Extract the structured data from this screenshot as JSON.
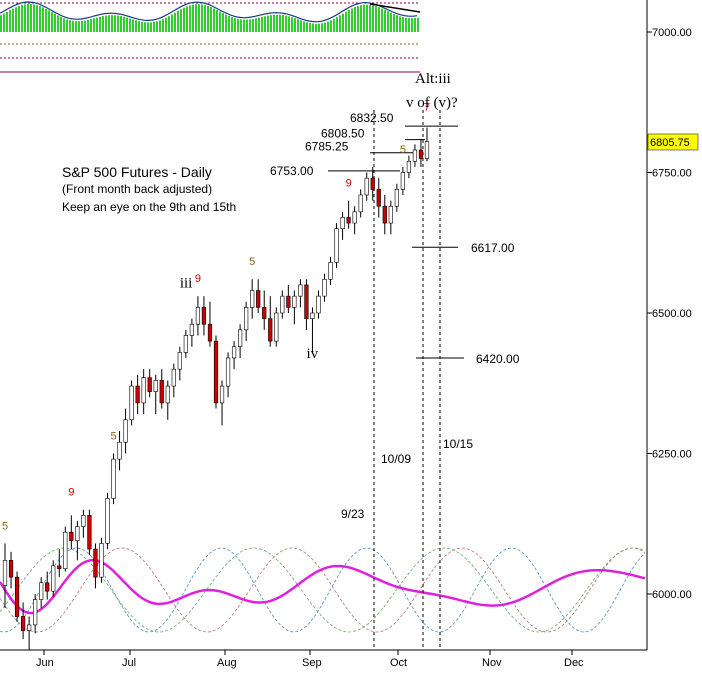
{
  "chart_data": {
    "type": "candlestick",
    "title": "S&P 500 Futures - Daily",
    "subtitle": "(Front month back adjusted)",
    "note": "Keep an eye on the 9th and 15th",
    "y_ticks": [
      "7000.00",
      "6750.00",
      "6500.00",
      "6250.00",
      "6000.00"
    ],
    "ylim": [
      5900,
      7050
    ],
    "x_months": [
      "Jun",
      "Jul",
      "Aug",
      "Sep",
      "Oct",
      "Nov",
      "Dec"
    ],
    "last_price": "6805.75",
    "candles": [
      {
        "t": "Jun 1",
        "o": 6015,
        "h": 6090,
        "l": 5975,
        "c": 6060
      },
      {
        "t": "Jun 2",
        "o": 6060,
        "h": 6075,
        "l": 6010,
        "c": 6030
      },
      {
        "t": "Jun 3",
        "o": 6030,
        "h": 6040,
        "l": 5950,
        "c": 5960
      },
      {
        "t": "Jun 4",
        "o": 5960,
        "h": 5985,
        "l": 5920,
        "c": 5935
      },
      {
        "t": "Jun 5",
        "o": 5935,
        "h": 5960,
        "l": 5900,
        "c": 5945
      },
      {
        "t": "Jun 6",
        "o": 5945,
        "h": 6000,
        "l": 5930,
        "c": 5990
      },
      {
        "t": "Jun 7",
        "o": 5990,
        "h": 6030,
        "l": 5975,
        "c": 6020
      },
      {
        "t": "Jun 8",
        "o": 6020,
        "h": 6040,
        "l": 5990,
        "c": 6005
      },
      {
        "t": "Jun 9",
        "o": 6005,
        "h": 6060,
        "l": 5995,
        "c": 6050
      },
      {
        "t": "Jun 10",
        "o": 6050,
        "h": 6080,
        "l": 6030,
        "c": 6045
      },
      {
        "t": "Jun 11",
        "o": 6045,
        "h": 6120,
        "l": 6040,
        "c": 6110
      },
      {
        "t": "Jun 12",
        "o": 6110,
        "h": 6140,
        "l": 6080,
        "c": 6095
      },
      {
        "t": "Jun 13",
        "o": 6095,
        "h": 6130,
        "l": 6060,
        "c": 6120
      },
      {
        "t": "Jun 14",
        "o": 6120,
        "h": 6150,
        "l": 6100,
        "c": 6140
      },
      {
        "t": "Jun 15",
        "o": 6140,
        "h": 6150,
        "l": 6070,
        "c": 6080
      },
      {
        "t": "Jun 16",
        "o": 6080,
        "h": 6090,
        "l": 6010,
        "c": 6030
      },
      {
        "t": "Jun 17",
        "o": 6030,
        "h": 6100,
        "l": 6020,
        "c": 6090
      },
      {
        "t": "Jun 18",
        "o": 6090,
        "h": 6180,
        "l": 6080,
        "c": 6170
      },
      {
        "t": "Jun 19",
        "o": 6170,
        "h": 6250,
        "l": 6160,
        "c": 6240
      },
      {
        "t": "Jun 20",
        "o": 6240,
        "h": 6290,
        "l": 6220,
        "c": 6270
      },
      {
        "t": "Jun 21",
        "o": 6270,
        "h": 6330,
        "l": 6250,
        "c": 6310
      },
      {
        "t": "Jun 22",
        "o": 6310,
        "h": 6380,
        "l": 6300,
        "c": 6370
      },
      {
        "t": "Jun 23",
        "o": 6370,
        "h": 6390,
        "l": 6320,
        "c": 6340
      },
      {
        "t": "Jul 1",
        "o": 6340,
        "h": 6400,
        "l": 6320,
        "c": 6385
      },
      {
        "t": "Jul 2",
        "o": 6385,
        "h": 6400,
        "l": 6350,
        "c": 6360
      },
      {
        "t": "Jul 3",
        "o": 6360,
        "h": 6390,
        "l": 6320,
        "c": 6380
      },
      {
        "t": "Jul 4",
        "o": 6380,
        "h": 6400,
        "l": 6330,
        "c": 6340
      },
      {
        "t": "Jul 5",
        "o": 6340,
        "h": 6380,
        "l": 6310,
        "c": 6370
      },
      {
        "t": "Jul 6",
        "o": 6370,
        "h": 6410,
        "l": 6350,
        "c": 6400
      },
      {
        "t": "Jul 7",
        "o": 6400,
        "h": 6440,
        "l": 6380,
        "c": 6430
      },
      {
        "t": "Jul 8",
        "o": 6430,
        "h": 6470,
        "l": 6420,
        "c": 6460
      },
      {
        "t": "Jul 9",
        "o": 6460,
        "h": 6490,
        "l": 6440,
        "c": 6480
      },
      {
        "t": "Jul 10",
        "o": 6480,
        "h": 6530,
        "l": 6460,
        "c": 6510
      },
      {
        "t": "Jul 11",
        "o": 6510,
        "h": 6530,
        "l": 6460,
        "c": 6480
      },
      {
        "t": "Jul 12",
        "o": 6480,
        "h": 6520,
        "l": 6440,
        "c": 6450
      },
      {
        "t": "Jul 13",
        "o": 6450,
        "h": 6460,
        "l": 6330,
        "c": 6340
      },
      {
        "t": "Jul 14",
        "o": 6340,
        "h": 6380,
        "l": 6300,
        "c": 6370
      },
      {
        "t": "Jul 15",
        "o": 6370,
        "h": 6430,
        "l": 6350,
        "c": 6420
      },
      {
        "t": "Jul 16",
        "o": 6420,
        "h": 6450,
        "l": 6400,
        "c": 6440
      },
      {
        "t": "Aug 1",
        "o": 6440,
        "h": 6480,
        "l": 6420,
        "c": 6470
      },
      {
        "t": "Aug 2",
        "o": 6470,
        "h": 6520,
        "l": 6450,
        "c": 6510
      },
      {
        "t": "Aug 3",
        "o": 6510,
        "h": 6560,
        "l": 6490,
        "c": 6540
      },
      {
        "t": "Aug 4",
        "o": 6540,
        "h": 6560,
        "l": 6500,
        "c": 6510
      },
      {
        "t": "Aug 5",
        "o": 6510,
        "h": 6540,
        "l": 6470,
        "c": 6490
      },
      {
        "t": "Aug 6",
        "o": 6490,
        "h": 6530,
        "l": 6440,
        "c": 6450
      },
      {
        "t": "Aug 7",
        "o": 6450,
        "h": 6510,
        "l": 6440,
        "c": 6500
      },
      {
        "t": "Aug 8",
        "o": 6500,
        "h": 6540,
        "l": 6490,
        "c": 6530
      },
      {
        "t": "Aug 9",
        "o": 6530,
        "h": 6550,
        "l": 6500,
        "c": 6510
      },
      {
        "t": "Aug 10",
        "o": 6510,
        "h": 6540,
        "l": 6480,
        "c": 6530
      },
      {
        "t": "Aug 11",
        "o": 6530,
        "h": 6560,
        "l": 6510,
        "c": 6550
      },
      {
        "t": "Aug 12",
        "o": 6550,
        "h": 6560,
        "l": 6470,
        "c": 6490
      },
      {
        "t": "Aug 13",
        "o": 6490,
        "h": 6510,
        "l": 6430,
        "c": 6500
      },
      {
        "t": "Sep 1",
        "o": 6500,
        "h": 6540,
        "l": 6490,
        "c": 6530
      },
      {
        "t": "Sep 2",
        "o": 6530,
        "h": 6570,
        "l": 6520,
        "c": 6560
      },
      {
        "t": "Sep 3",
        "o": 6560,
        "h": 6600,
        "l": 6550,
        "c": 6590
      },
      {
        "t": "Sep 4",
        "o": 6590,
        "h": 6660,
        "l": 6580,
        "c": 6650
      },
      {
        "t": "Sep 5",
        "o": 6650,
        "h": 6680,
        "l": 6630,
        "c": 6670
      },
      {
        "t": "Sep 6",
        "o": 6670,
        "h": 6700,
        "l": 6650,
        "c": 6660
      },
      {
        "t": "Sep 7",
        "o": 6660,
        "h": 6690,
        "l": 6640,
        "c": 6680
      },
      {
        "t": "Sep 8",
        "o": 6680,
        "h": 6720,
        "l": 6670,
        "c": 6710
      },
      {
        "t": "Sep 9",
        "o": 6710,
        "h": 6750,
        "l": 6700,
        "c": 6740
      },
      {
        "t": "Sep 10",
        "o": 6740,
        "h": 6760,
        "l": 6700,
        "c": 6720
      },
      {
        "t": "Sep 11",
        "o": 6720,
        "h": 6740,
        "l": 6670,
        "c": 6690
      },
      {
        "t": "Sep 12",
        "o": 6690,
        "h": 6710,
        "l": 6640,
        "c": 6660
      },
      {
        "t": "Sep 13",
        "o": 6660,
        "h": 6700,
        "l": 6640,
        "c": 6690
      },
      {
        "t": "Sep 14",
        "o": 6690,
        "h": 6730,
        "l": 6680,
        "c": 6720
      },
      {
        "t": "Sep 15",
        "o": 6720,
        "h": 6760,
        "l": 6710,
        "c": 6750
      },
      {
        "t": "Oct 1",
        "o": 6750,
        "h": 6780,
        "l": 6740,
        "c": 6770
      },
      {
        "t": "Oct 2",
        "o": 6770,
        "h": 6800,
        "l": 6760,
        "c": 6790
      },
      {
        "t": "Oct 3",
        "o": 6790,
        "h": 6810,
        "l": 6760,
        "c": 6775
      },
      {
        "t": "Oct 4",
        "o": 6775,
        "h": 6830,
        "l": 6770,
        "c": 6805
      }
    ],
    "count_labels": [
      {
        "text": "5",
        "color": "#8b6914",
        "t": "Jun 1",
        "y": 6115
      },
      {
        "text": "9",
        "color": "#cc0000",
        "t": "Jun 12",
        "y": 6175
      },
      {
        "text": "5",
        "color": "#8b6914",
        "t": "Jun 19",
        "y": 6275
      },
      {
        "text": "9",
        "color": "#cc0000",
        "t": "Jul 10",
        "y": 6555
      },
      {
        "text": "5",
        "color": "#8b6914",
        "t": "Aug 3",
        "y": 6585
      },
      {
        "text": "9",
        "color": "#cc0000",
        "t": "Sep 6",
        "y": 6725
      },
      {
        "text": "5",
        "color": "#8b6914",
        "t": "Sep 15",
        "y": 6785
      },
      {
        "text": "7",
        "color": "#cc0000",
        "t": "Oct 4",
        "y": 6860
      }
    ],
    "wave_labels": [
      {
        "text": "iii",
        "t": "Jul 8",
        "y": 6545
      },
      {
        "text": "iv",
        "t": "Aug 13",
        "y": 6420
      }
    ],
    "alt_label": [
      "Alt:iii",
      "v of (v)?"
    ],
    "levels": [
      {
        "label": "6832.50",
        "value": 6832.5
      },
      {
        "label": "6808.50",
        "value": 6808.5
      },
      {
        "label": "6785.25",
        "value": 6785.25
      },
      {
        "label": "6753.00",
        "value": 6753
      },
      {
        "label": "6617.00",
        "value": 6617
      },
      {
        "label": "6420.00",
        "value": 6420
      }
    ],
    "vlines": [
      {
        "label": "9/23",
        "pos": 0.575
      },
      {
        "label": "10/09",
        "pos": 0.651
      },
      {
        "label": "10/15",
        "pos": 0.682
      }
    ],
    "grid": false,
    "colors": {
      "up": "#ffffff",
      "down": "#cc0000",
      "wick": "#000000",
      "composite_cycle": "#dd22dd",
      "cycle_1": "#c07070",
      "cycle_2": "#5588cc",
      "cycle_3": "#66aa66",
      "indicator_bars": "#33cc33",
      "last_price_bg": "#ffff00"
    }
  }
}
